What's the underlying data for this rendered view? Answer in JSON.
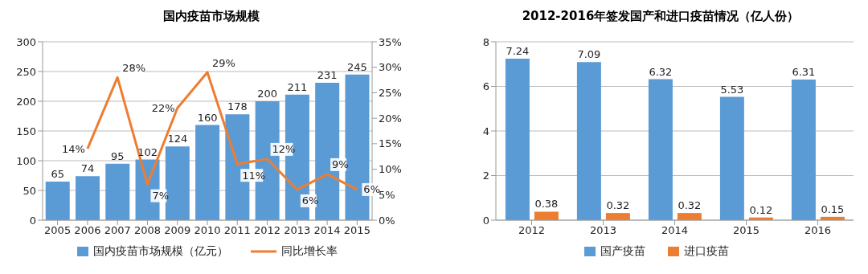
{
  "chart_data": [
    {
      "type": "bar",
      "title": "国内疫苗市场规模",
      "categories": [
        "2005",
        "2006",
        "2007",
        "2008",
        "2009",
        "2010",
        "2011",
        "2012",
        "2013",
        "2014",
        "2015"
      ],
      "series": [
        {
          "name": "国内疫苗市场规模（亿元）",
          "color": "#5b9bd5",
          "values": [
            65,
            74,
            95,
            102,
            124,
            160,
            178,
            200,
            211,
            231,
            245
          ]
        },
        {
          "name": "同比增长率",
          "type": "line",
          "axis": "y2",
          "color": "#ed7d31",
          "values": [
            null,
            14,
            28,
            7,
            22,
            29,
            11,
            12,
            6,
            9,
            6
          ],
          "value_labels": [
            null,
            "14%",
            "28%",
            "7%",
            "22%",
            "29%",
            "11%",
            "12%",
            "6%",
            "9%",
            "6%"
          ]
        }
      ],
      "ylim": [
        0,
        300
      ],
      "yticks": [
        0,
        50,
        100,
        150,
        200,
        250,
        300
      ],
      "y2lim": [
        0,
        35
      ],
      "y2ticks": [
        {
          "value": 0,
          "label": "0%"
        },
        {
          "value": 5,
          "label": "5%"
        },
        {
          "value": 10,
          "label": "10%"
        },
        {
          "value": 15,
          "label": "15%"
        },
        {
          "value": 20,
          "label": "20%"
        },
        {
          "value": 25,
          "label": "25%"
        },
        {
          "value": 30,
          "label": "30%"
        },
        {
          "value": 35,
          "label": "35%"
        }
      ],
      "data_labels": true,
      "grid": "y",
      "legend": "bottom",
      "marker": "none"
    },
    {
      "type": "bar",
      "title": "2012-2016年签发国产和进口疫苗情况（亿人份）",
      "categories": [
        "2012",
        "2013",
        "2014",
        "2015",
        "2016"
      ],
      "series": [
        {
          "name": "国产疫苗",
          "color": "#5b9bd5",
          "values": [
            7.24,
            7.09,
            6.32,
            5.53,
            6.31
          ]
        },
        {
          "name": "进口疫苗",
          "color": "#ed7d31",
          "values": [
            0.38,
            0.32,
            0.32,
            0.12,
            0.15
          ]
        }
      ],
      "ylim": [
        0,
        8
      ],
      "yticks": [
        0,
        2,
        4,
        6,
        8
      ],
      "data_labels": true,
      "grid": "y",
      "legend": "bottom"
    }
  ]
}
